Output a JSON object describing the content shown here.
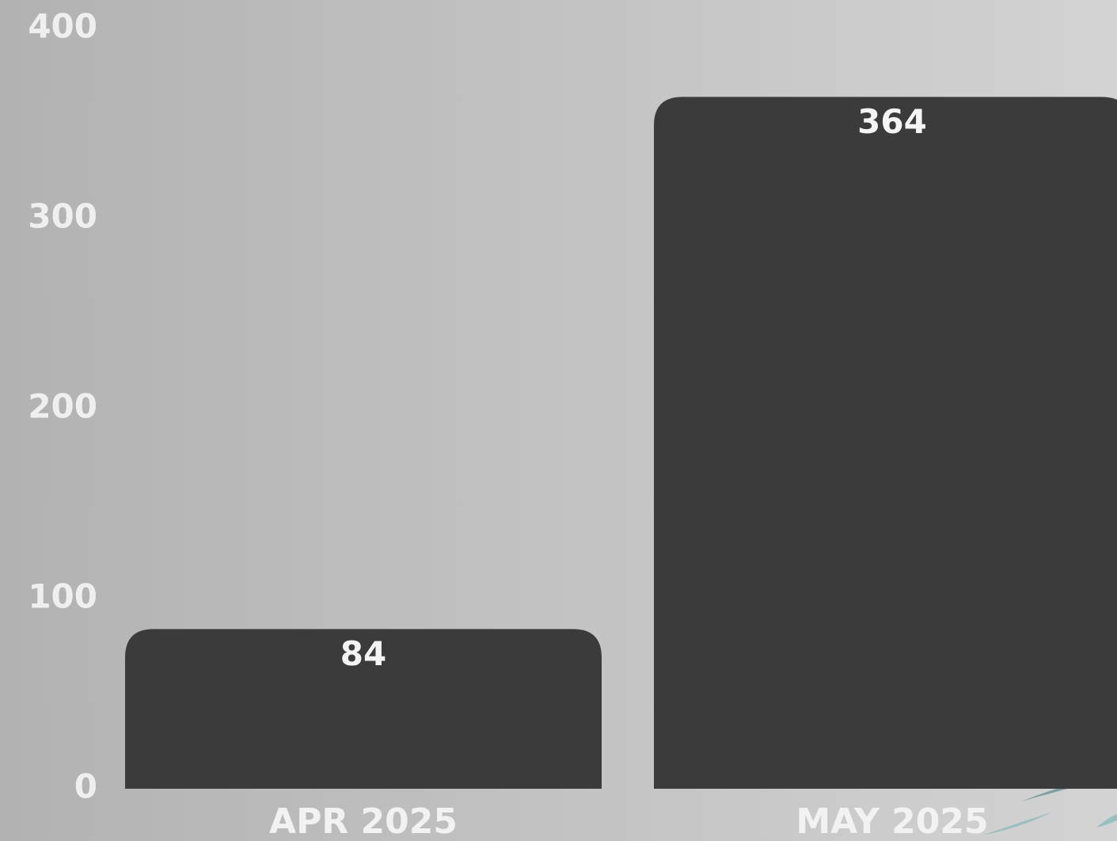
{
  "chart_data": {
    "type": "bar",
    "categories": [
      "APR 2025",
      "MAY 2025"
    ],
    "values": [
      84,
      364
    ],
    "color": "#3b3b3b",
    "ylim": [
      0,
      400
    ],
    "yticks": [
      0,
      100,
      200,
      300,
      400
    ],
    "grid": false
  }
}
